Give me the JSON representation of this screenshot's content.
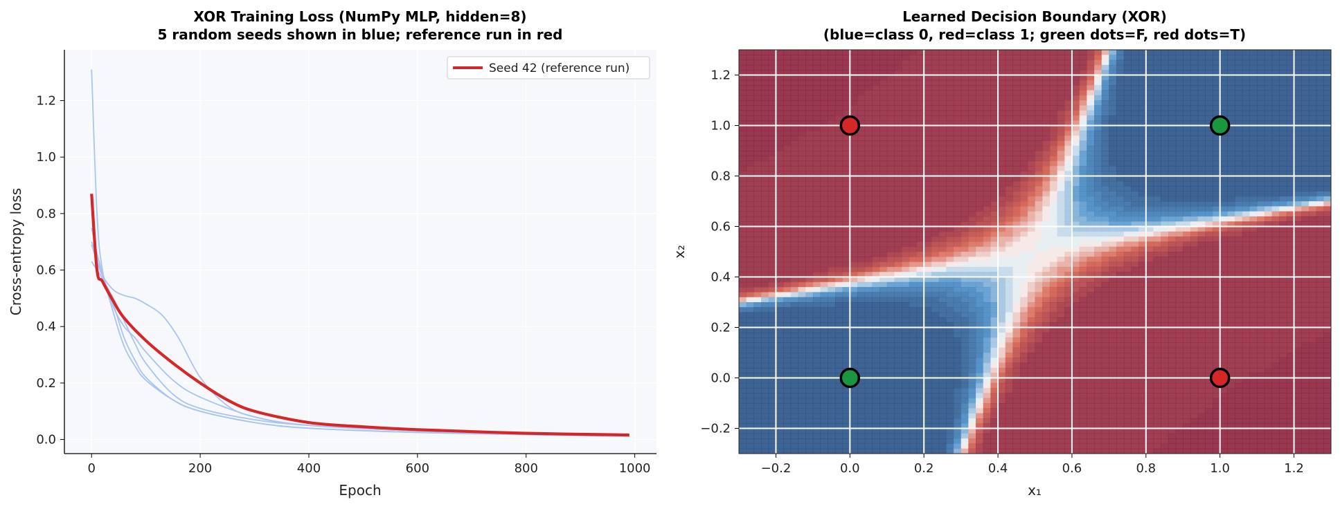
{
  "chart_data": [
    {
      "type": "line",
      "title_lines": [
        "XOR Training Loss (NumPy MLP, hidden=8)",
        "5 random seeds shown in blue; reference run in red"
      ],
      "xlabel": "Epoch",
      "ylabel": "Cross-entropy loss",
      "xlim": [
        -50,
        1040
      ],
      "ylim": [
        -0.05,
        1.38
      ],
      "xticks": [
        0,
        200,
        400,
        600,
        800,
        1000
      ],
      "yticks": [
        0.0,
        0.2,
        0.4,
        0.6,
        0.8,
        1.0,
        1.2
      ],
      "grid": true,
      "legend": {
        "position": "top-right",
        "entries": [
          "Seed 42 (reference run)"
        ]
      },
      "colors": {
        "seeds": "#a8c4f0",
        "reference": "#d62728",
        "background": "#f6f8fb"
      },
      "seed_runs": [
        {
          "x": [
            0,
            10,
            20,
            40,
            60,
            80,
            100,
            150,
            200,
            300,
            400,
            600,
            800,
            990
          ],
          "y": [
            1.31,
            0.8,
            0.6,
            0.45,
            0.33,
            0.26,
            0.21,
            0.14,
            0.1,
            0.06,
            0.04,
            0.025,
            0.018,
            0.012
          ]
        },
        {
          "x": [
            0,
            10,
            20,
            40,
            60,
            80,
            100,
            130,
            160,
            200,
            250,
            300,
            400,
            600,
            800,
            990
          ],
          "y": [
            0.69,
            0.63,
            0.58,
            0.53,
            0.51,
            0.5,
            0.48,
            0.44,
            0.36,
            0.22,
            0.12,
            0.08,
            0.05,
            0.03,
            0.02,
            0.015
          ]
        },
        {
          "x": [
            0,
            10,
            20,
            40,
            60,
            80,
            100,
            150,
            200,
            300,
            400,
            600,
            800,
            990
          ],
          "y": [
            0.63,
            0.6,
            0.57,
            0.5,
            0.42,
            0.34,
            0.27,
            0.16,
            0.11,
            0.07,
            0.05,
            0.03,
            0.02,
            0.013
          ]
        },
        {
          "x": [
            0,
            10,
            20,
            40,
            60,
            80,
            100,
            150,
            200,
            300,
            400,
            600,
            800,
            990
          ],
          "y": [
            0.75,
            0.66,
            0.59,
            0.47,
            0.4,
            0.36,
            0.31,
            0.21,
            0.15,
            0.08,
            0.05,
            0.03,
            0.02,
            0.013
          ]
        },
        {
          "x": [
            0,
            10,
            20,
            40,
            60,
            80,
            100,
            150,
            200,
            300,
            400,
            600,
            800,
            990
          ],
          "y": [
            0.7,
            0.65,
            0.58,
            0.48,
            0.36,
            0.28,
            0.22,
            0.14,
            0.1,
            0.06,
            0.04,
            0.025,
            0.017,
            0.011
          ]
        }
      ],
      "reference_run": {
        "name": "Seed 42 (reference run)",
        "x": [
          0,
          10,
          20,
          40,
          60,
          100,
          150,
          200,
          250,
          300,
          400,
          500,
          600,
          800,
          990
        ],
        "y": [
          0.87,
          0.6,
          0.56,
          0.49,
          0.43,
          0.35,
          0.27,
          0.2,
          0.14,
          0.1,
          0.06,
          0.045,
          0.035,
          0.022,
          0.016
        ]
      }
    },
    {
      "type": "heatmap",
      "title_lines": [
        "Learned Decision Boundary (XOR)",
        "(blue=class 0, red=class 1; green dots=F, red dots=T)"
      ],
      "xlabel": "x₁",
      "ylabel": "x₂",
      "xlim": [
        -0.3,
        1.3
      ],
      "ylim": [
        -0.3,
        1.3
      ],
      "xticks": [
        -0.2,
        0.0,
        0.2,
        0.4,
        0.6,
        0.8,
        1.0,
        1.2
      ],
      "yticks": [
        -0.2,
        0.0,
        0.2,
        0.4,
        0.6,
        0.8,
        1.0,
        1.2
      ],
      "grid": true,
      "colormap": "RdBu_r",
      "boundary": {
        "x_cross": 0.5,
        "y_cross": 0.5
      },
      "points": [
        {
          "x": 0,
          "y": 0,
          "label": "F",
          "color": "#1a9641"
        },
        {
          "x": 1,
          "y": 1,
          "label": "F",
          "color": "#1a9641"
        },
        {
          "x": 0,
          "y": 1,
          "label": "T",
          "color": "#d62728"
        },
        {
          "x": 1,
          "y": 0,
          "label": "T",
          "color": "#d62728"
        }
      ]
    }
  ]
}
